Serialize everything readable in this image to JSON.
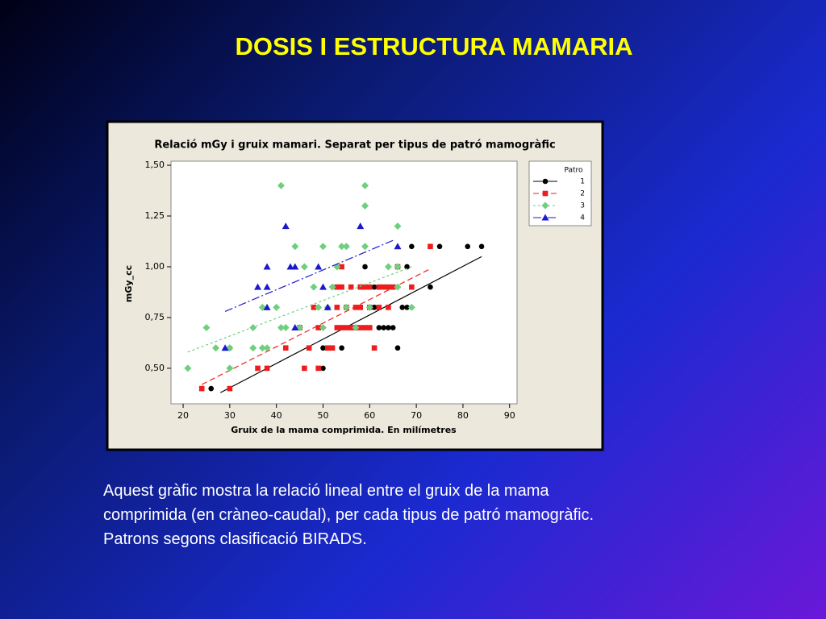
{
  "slide_title": "DOSIS I ESTRUCTURA MAMARIA",
  "caption": [
    "Aquest gràfic mostra la relació lineal entre el gruix de la mama",
    "comprimida (en cràneo-caudal), per cada tipus de patró mamogràfic.",
    "Patrons segons clasificació BIRADS."
  ],
  "chart_data": {
    "type": "scatter",
    "title": "Relació mGy i gruix mamari. Separat per tipus de patró mamogràfic",
    "xlabel": "Gruix de la mama comprimida. En milímetres",
    "ylabel": "mGy_cc",
    "xlim": [
      17.4,
      91.6
    ],
    "ylim": [
      0.325,
      1.52
    ],
    "xticks": [
      20,
      30,
      40,
      50,
      60,
      70,
      80,
      90
    ],
    "yticks": [
      {
        "value": 0.5,
        "label": "0,50"
      },
      {
        "value": 0.75,
        "label": "0,75"
      },
      {
        "value": 1.0,
        "label": "1,00"
      },
      {
        "value": 1.25,
        "label": "1,25"
      },
      {
        "value": 1.5,
        "label": "1,50"
      }
    ],
    "legend_title": "Patro",
    "legend_position": "upper-right",
    "series": [
      {
        "name": "1",
        "color": "#000000",
        "marker": "circle",
        "line_style": "solid",
        "x": [
          26,
          50,
          59,
          69,
          75,
          81,
          84,
          73,
          68,
          61,
          62,
          67,
          68,
          66,
          54,
          50,
          56,
          62,
          63,
          64,
          65,
          30,
          61
        ],
        "values": [
          0.4,
          0.5,
          1.0,
          1.1,
          1.1,
          1.1,
          1.1,
          0.9,
          1.0,
          0.9,
          0.9,
          0.8,
          0.8,
          0.6,
          0.6,
          0.6,
          0.7,
          0.7,
          0.7,
          0.7,
          0.7,
          0.6,
          0.8
        ],
        "fit": {
          "x": [
            28,
            84
          ],
          "values": [
            0.38,
            1.05
          ]
        }
      },
      {
        "name": "2",
        "color": "#ee1c1c",
        "marker": "square",
        "line_style": "dashed",
        "x": [
          24,
          30,
          36,
          38,
          46,
          49,
          42,
          47,
          51,
          52,
          61,
          45,
          49,
          53,
          54,
          55,
          56,
          57,
          58,
          59,
          60,
          48,
          53,
          55,
          57,
          58,
          60,
          62,
          64,
          54,
          56,
          58,
          59,
          60,
          62,
          63,
          64,
          65,
          69,
          54,
          66,
          73,
          53
        ],
        "values": [
          0.4,
          0.4,
          0.5,
          0.5,
          0.5,
          0.5,
          0.6,
          0.6,
          0.6,
          0.6,
          0.6,
          0.7,
          0.7,
          0.7,
          0.7,
          0.7,
          0.7,
          0.7,
          0.7,
          0.7,
          0.7,
          0.8,
          0.8,
          0.8,
          0.8,
          0.8,
          0.8,
          0.8,
          0.8,
          0.9,
          0.9,
          0.9,
          0.9,
          0.9,
          0.9,
          0.9,
          0.9,
          0.9,
          0.9,
          1.0,
          1.0,
          1.1,
          0.9
        ],
        "fit": {
          "x": [
            24,
            73
          ],
          "values": [
            0.42,
            0.99
          ]
        }
      },
      {
        "name": "3",
        "color": "#6fcf7f",
        "marker": "diamond",
        "line_style": "dotted",
        "x": [
          21,
          25,
          27,
          30,
          30,
          35,
          35,
          37,
          38,
          37,
          40,
          41,
          41,
          42,
          44,
          45,
          46,
          48,
          49,
          50,
          50,
          52,
          53,
          54,
          55,
          55,
          57,
          59,
          59,
          59,
          60,
          64,
          66,
          66,
          66,
          69,
          51
        ],
        "values": [
          0.5,
          0.7,
          0.6,
          0.6,
          0.5,
          0.7,
          0.6,
          0.6,
          0.6,
          0.8,
          0.8,
          1.4,
          0.7,
          0.7,
          1.1,
          0.7,
          1.0,
          0.9,
          0.8,
          1.1,
          0.7,
          0.9,
          1.0,
          1.1,
          1.1,
          0.8,
          0.7,
          1.4,
          1.3,
          1.1,
          0.8,
          1.0,
          1.2,
          1.0,
          0.9,
          0.8,
          0.8
        ],
        "fit": {
          "x": [
            21,
            69
          ],
          "values": [
            0.58,
            1.0
          ]
        }
      },
      {
        "name": "4",
        "color": "#1a1acc",
        "marker": "triangle",
        "line_style": "dashdot",
        "x": [
          29,
          36,
          38,
          38,
          38,
          42,
          43,
          44,
          44,
          49,
          50,
          51,
          58,
          66
        ],
        "values": [
          0.6,
          0.9,
          0.9,
          0.8,
          1.0,
          1.2,
          1.0,
          1.0,
          0.7,
          1.0,
          0.9,
          0.8,
          1.2,
          1.1
        ],
        "fit": {
          "x": [
            29,
            65
          ],
          "values": [
            0.78,
            1.13
          ]
        }
      }
    ]
  }
}
